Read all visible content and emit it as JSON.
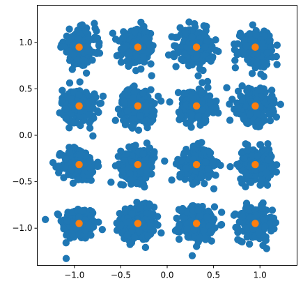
{
  "chart_data": {
    "type": "scatter",
    "title": "",
    "xlabel": "",
    "ylabel": "",
    "xlim": [
      -1.4,
      1.4
    ],
    "ylim": [
      -1.4,
      1.4
    ],
    "xticks": [
      -1.0,
      -0.5,
      0.0,
      0.5,
      1.0
    ],
    "yticks": [
      -1.0,
      -0.5,
      0.0,
      0.5,
      1.0
    ],
    "xtick_labels": [
      "−1.0",
      "−0.5",
      "0.0",
      "0.5",
      "1.0"
    ],
    "ytick_labels": [
      "−1.0",
      "−0.5",
      "0.0",
      "0.5",
      "1.0"
    ],
    "grid": false,
    "legend": "none",
    "series": [
      {
        "marker_color": "#1f77b4",
        "description_points": "noisy samples clustered around each of 16 constellation points",
        "centers": [
          -0.949,
          -0.316,
          0.316,
          0.949
        ],
        "noise_std": 0.09,
        "points_per_cluster": 220
      },
      {
        "marker_color": "#ff7f0e",
        "x": [
          -0.949,
          -0.316,
          0.316,
          0.949,
          -0.949,
          -0.316,
          0.316,
          0.949,
          -0.949,
          -0.316,
          0.316,
          0.949,
          -0.949,
          -0.316,
          0.316,
          0.949
        ],
        "y": [
          0.949,
          0.949,
          0.949,
          0.949,
          0.316,
          0.316,
          0.316,
          0.316,
          -0.316,
          -0.316,
          -0.316,
          -0.316,
          -0.949,
          -0.949,
          -0.949,
          -0.949
        ]
      }
    ]
  }
}
